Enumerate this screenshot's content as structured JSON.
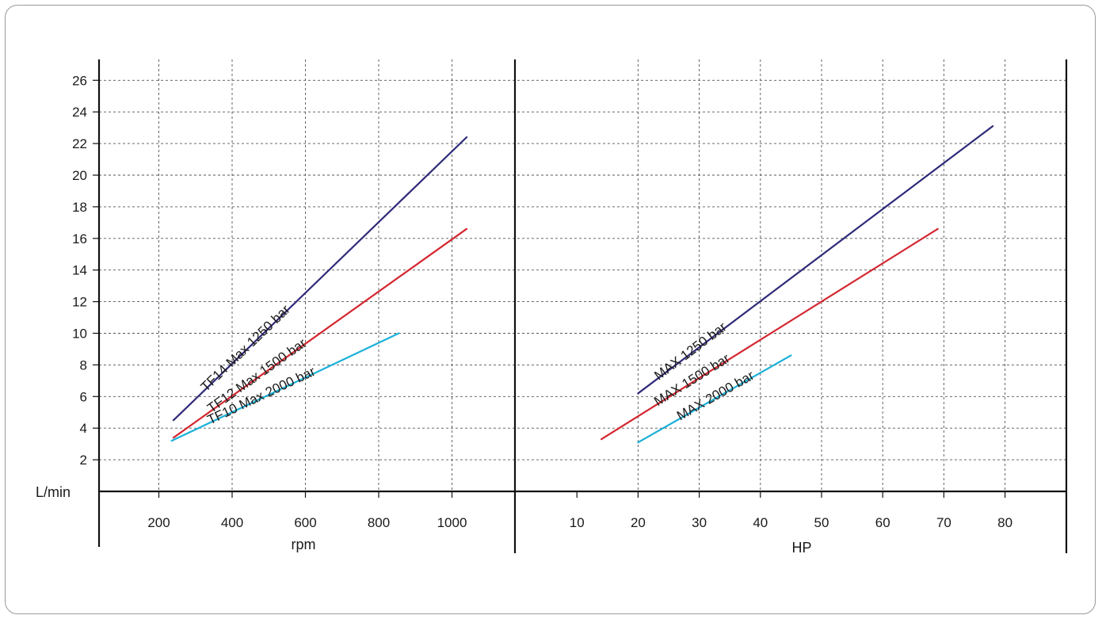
{
  "chart_data": {
    "type": "line",
    "y_axis": {
      "label": "L/min",
      "ticks": [
        2,
        4,
        6,
        8,
        10,
        12,
        14,
        16,
        18,
        20,
        22,
        24,
        26
      ],
      "range": [
        0,
        26
      ]
    },
    "panels": [
      {
        "id": "rpm",
        "xlabel": "rpm",
        "x_ticks": [
          200,
          400,
          600,
          800,
          1000
        ],
        "grid_x": [
          200,
          400,
          600,
          800,
          1000
        ],
        "series": [
          {
            "name": "TF14 Max 1250 bar",
            "color": "#2e2a78",
            "points": [
              [
                240,
                4.5
              ],
              [
                1040,
                22.4
              ]
            ]
          },
          {
            "name": "TF12 Max 1500 bar",
            "color": "#d4262f",
            "points": [
              [
                240,
                3.4
              ],
              [
                1040,
                16.6
              ]
            ]
          },
          {
            "name": "TF10 Max 2000 bar",
            "color": "#1ab0d8",
            "points": [
              [
                235,
                3.2
              ],
              [
                855,
                10.0
              ]
            ]
          }
        ]
      },
      {
        "id": "hp",
        "xlabel": "HP",
        "x_ticks": [
          10,
          20,
          30,
          40,
          50,
          60,
          70,
          80
        ],
        "grid_x": [
          20,
          30,
          40,
          50,
          60,
          70,
          80
        ],
        "series": [
          {
            "name": "MAX 1250 bar",
            "color": "#2e2a78",
            "points": [
              [
                20,
                6.2
              ],
              [
                78,
                23.1
              ]
            ]
          },
          {
            "name": "MAX 1500 bar",
            "color": "#d4262f",
            "points": [
              [
                14,
                3.3
              ],
              [
                69,
                16.6
              ]
            ]
          },
          {
            "name": "MAX 2000 bar",
            "color": "#1ab0d8",
            "points": [
              [
                20,
                3.1
              ],
              [
                45,
                8.6
              ]
            ]
          }
        ]
      }
    ],
    "grid": true
  }
}
